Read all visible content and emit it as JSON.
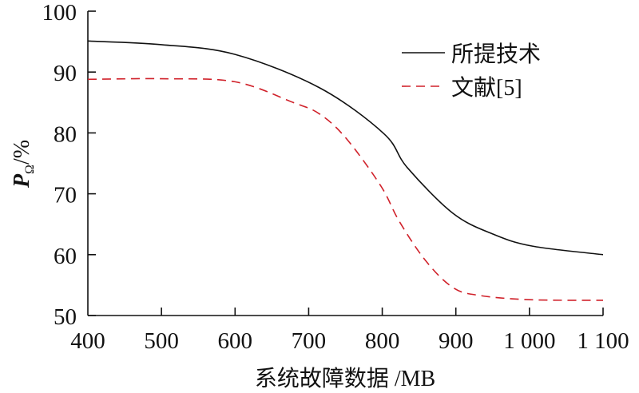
{
  "chart_data": {
    "type": "line",
    "title": "",
    "xlabel": "系统故障数据 /MB",
    "ylabel_main": "P",
    "ylabel_sub": "Ω",
    "ylabel_unit": "/%",
    "xlim": [
      400,
      1100
    ],
    "ylim": [
      50,
      100
    ],
    "xticks": [
      400,
      500,
      600,
      700,
      800,
      900,
      1000,
      1100
    ],
    "xtick_labels": [
      "400",
      "500",
      "600",
      "700",
      "800",
      "900",
      "1 000",
      "1 100"
    ],
    "yticks": [
      50,
      60,
      70,
      80,
      90,
      100
    ],
    "ytick_labels": [
      "50",
      "60",
      "70",
      "80",
      "90",
      "100"
    ],
    "grid": false,
    "legend_position": "top-right",
    "series": [
      {
        "name": "所提技术",
        "color": "#111111",
        "style": "solid",
        "x": [
          400,
          500,
          600,
          715,
          802,
          834,
          896,
          950,
          1004,
          1100
        ],
        "y": [
          95.1,
          94.5,
          92.9,
          87.4,
          79.9,
          74.3,
          66.8,
          63.4,
          61.4,
          60.0
        ]
      },
      {
        "name": "文献[5]",
        "color": "#d0212a",
        "style": "dashed",
        "x": [
          400,
          500,
          600,
          679,
          715,
          751,
          798,
          823,
          859,
          896,
          932,
          1000,
          1100
        ],
        "y": [
          88.8,
          88.9,
          88.4,
          85.0,
          83.1,
          79.1,
          71.3,
          65.5,
          59.0,
          54.6,
          53.3,
          52.6,
          52.5
        ]
      }
    ]
  }
}
